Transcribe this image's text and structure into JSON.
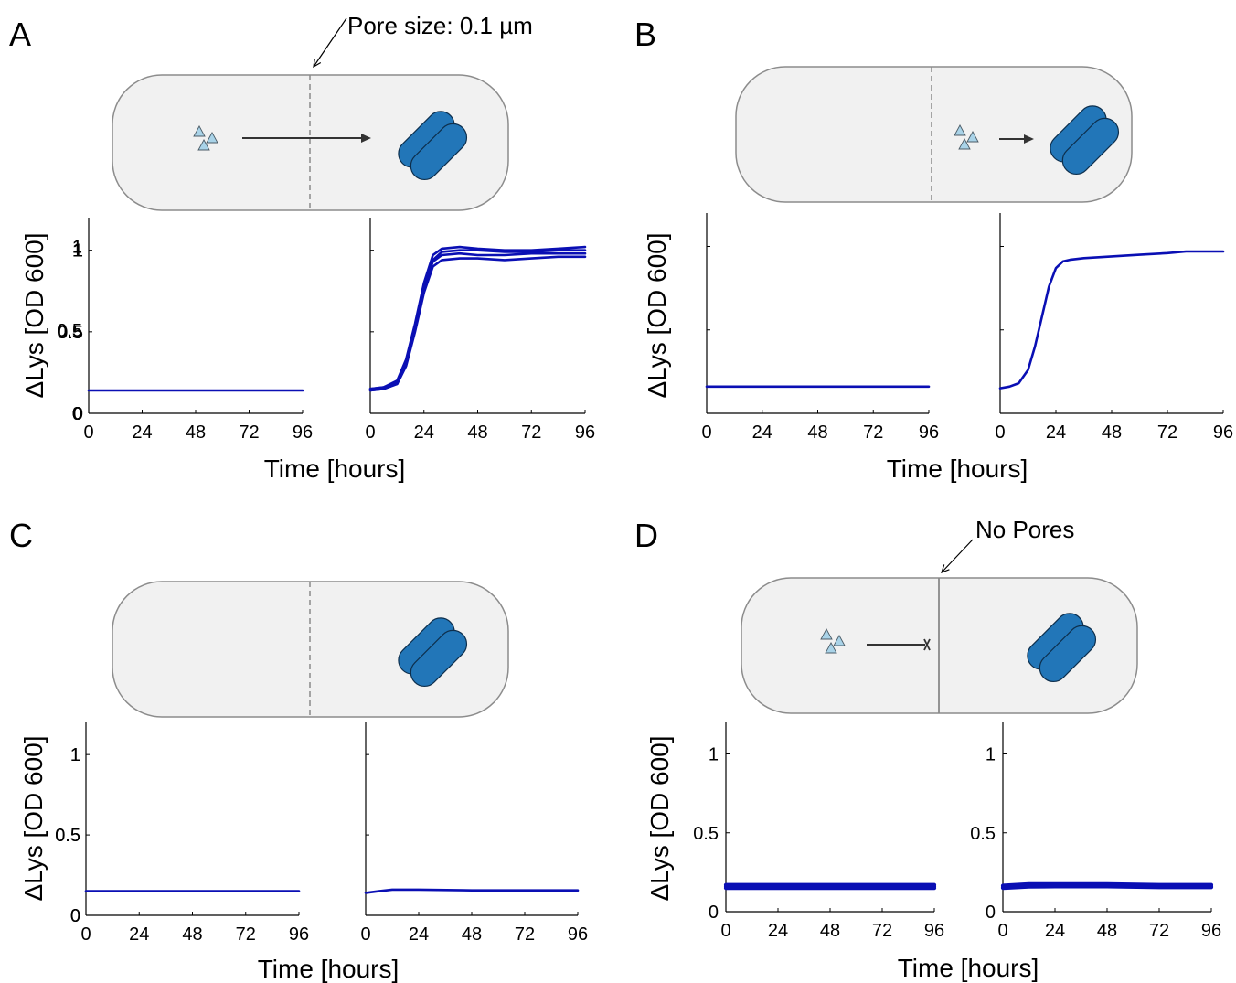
{
  "figure": {
    "panels": [
      {
        "letter": "A",
        "annotation": "Pore size: 0.1 µm",
        "nutrient_flow": "crosses_membrane",
        "membrane": "porous"
      },
      {
        "letter": "B",
        "annotation": "",
        "nutrient_flow": "same_side",
        "membrane": "porous"
      },
      {
        "letter": "C",
        "annotation": "",
        "nutrient_flow": "none",
        "membrane": "porous"
      },
      {
        "letter": "D",
        "annotation": "No Pores",
        "nutrient_flow": "blocked",
        "membrane": "solid"
      }
    ],
    "colors": {
      "curve": "#0a0fb4",
      "chamber_fill": "#f1f1f1",
      "chamber_stroke": "#8c8c8c",
      "bacteria": "#2276b8",
      "nutrient": "#a9d3e8",
      "arrow": "#333333"
    },
    "icons": [
      "nutrient-triangles",
      "rod-bacteria",
      "arrow",
      "membrane-dashed",
      "membrane-solid"
    ]
  },
  "chart_data": [
    {
      "panel": "A",
      "side": "left",
      "type": "line",
      "xlabel": "Time [hours]",
      "ylabel": "ΔLys [OD 600]",
      "xlim": [
        0,
        96
      ],
      "ylim": [
        0,
        1.2
      ],
      "xticks": [
        "0",
        "24",
        "48",
        "72",
        "96"
      ],
      "yticks": [
        "0",
        "0.5",
        "1"
      ],
      "series": [
        {
          "x": [
            0,
            24,
            48,
            72,
            96
          ],
          "y": [
            0.14,
            0.14,
            0.14,
            0.14,
            0.14
          ]
        }
      ]
    },
    {
      "panel": "A",
      "side": "right",
      "type": "line",
      "xlabel": "Time [hours]",
      "ylabel": "",
      "xlim": [
        0,
        96
      ],
      "ylim": [
        0,
        1.2
      ],
      "xticks": [
        "0",
        "24",
        "48",
        "72",
        "96"
      ],
      "yticks": [
        "0",
        "0.5",
        "1"
      ],
      "series": [
        {
          "x": [
            0,
            6,
            12,
            16,
            20,
            24,
            28,
            32,
            40,
            48,
            60,
            72,
            84,
            96
          ],
          "y": [
            0.15,
            0.16,
            0.2,
            0.33,
            0.55,
            0.8,
            0.97,
            1.01,
            1.02,
            1.01,
            1.0,
            1.0,
            1.01,
            1.02
          ]
        },
        {
          "x": [
            0,
            6,
            12,
            16,
            20,
            24,
            28,
            32,
            40,
            48,
            60,
            72,
            84,
            96
          ],
          "y": [
            0.14,
            0.15,
            0.18,
            0.3,
            0.52,
            0.77,
            0.94,
            0.99,
            1.0,
            1.0,
            0.99,
            0.99,
            1.0,
            1.0
          ]
        },
        {
          "x": [
            0,
            6,
            12,
            16,
            20,
            24,
            28,
            32,
            40,
            48,
            60,
            72,
            84,
            96
          ],
          "y": [
            0.15,
            0.16,
            0.19,
            0.32,
            0.54,
            0.78,
            0.93,
            0.97,
            0.98,
            0.97,
            0.97,
            0.98,
            0.98,
            0.98
          ]
        },
        {
          "x": [
            0,
            6,
            12,
            16,
            20,
            24,
            28,
            32,
            40,
            48,
            60,
            72,
            84,
            96
          ],
          "y": [
            0.14,
            0.15,
            0.18,
            0.29,
            0.5,
            0.74,
            0.9,
            0.94,
            0.95,
            0.95,
            0.94,
            0.95,
            0.96,
            0.96
          ]
        }
      ]
    },
    {
      "panel": "B",
      "side": "left",
      "type": "line",
      "xlabel": "Time [hours]",
      "ylabel": "ΔLys [OD 600]",
      "xlim": [
        0,
        96
      ],
      "ylim": [
        0,
        1.2
      ],
      "xticks": [
        "0",
        "24",
        "48",
        "72",
        "96"
      ],
      "yticks": [
        "0",
        "0.5",
        "1"
      ],
      "series": [
        {
          "x": [
            0,
            24,
            48,
            72,
            96
          ],
          "y": [
            0.16,
            0.16,
            0.16,
            0.16,
            0.16
          ]
        }
      ]
    },
    {
      "panel": "B",
      "side": "right",
      "type": "line",
      "xlabel": "Time [hours]",
      "ylabel": "",
      "xlim": [
        0,
        96
      ],
      "ylim": [
        0,
        1.2
      ],
      "xticks": [
        "0",
        "24",
        "48",
        "72",
        "96"
      ],
      "yticks": [
        "0",
        "0.5",
        "1"
      ],
      "series": [
        {
          "x": [
            0,
            4,
            8,
            12,
            15,
            18,
            21,
            24,
            27,
            30,
            36,
            48,
            60,
            72,
            80,
            88,
            96
          ],
          "y": [
            0.15,
            0.16,
            0.18,
            0.26,
            0.4,
            0.58,
            0.76,
            0.87,
            0.91,
            0.92,
            0.93,
            0.94,
            0.95,
            0.96,
            0.97,
            0.97,
            0.97
          ]
        }
      ]
    },
    {
      "panel": "C",
      "side": "left",
      "type": "line",
      "xlabel": "Time [hours]",
      "ylabel": "ΔLys [OD 600]",
      "xlim": [
        0,
        96
      ],
      "ylim": [
        0,
        1.2
      ],
      "xticks": [
        "0",
        "24",
        "48",
        "72",
        "96"
      ],
      "yticks": [
        "0",
        "0.5",
        "1"
      ],
      "series": [
        {
          "x": [
            0,
            24,
            48,
            72,
            96
          ],
          "y": [
            0.15,
            0.15,
            0.15,
            0.15,
            0.15
          ]
        }
      ]
    },
    {
      "panel": "C",
      "side": "right",
      "type": "line",
      "xlabel": "Time [hours]",
      "ylabel": "",
      "xlim": [
        0,
        96
      ],
      "ylim": [
        0,
        1.2
      ],
      "xticks": [
        "0",
        "24",
        "48",
        "72",
        "96"
      ],
      "yticks": [
        "0",
        "0.5",
        "1"
      ],
      "series": [
        {
          "x": [
            0,
            6,
            12,
            18,
            24,
            48,
            72,
            96
          ],
          "y": [
            0.14,
            0.15,
            0.16,
            0.16,
            0.16,
            0.155,
            0.155,
            0.155
          ]
        }
      ]
    },
    {
      "panel": "D",
      "side": "left",
      "type": "line",
      "xlabel": "Time [hours]",
      "ylabel": "ΔLys [OD 600]",
      "xlim": [
        0,
        96
      ],
      "ylim": [
        0,
        1.2
      ],
      "xticks": [
        "0",
        "24",
        "48",
        "72",
        "96"
      ],
      "yticks": [
        "0",
        "0.5",
        "1"
      ],
      "series": [
        {
          "x": [
            0,
            24,
            48,
            72,
            96
          ],
          "y": [
            0.17,
            0.17,
            0.17,
            0.17,
            0.17
          ]
        },
        {
          "x": [
            0,
            24,
            48,
            72,
            96
          ],
          "y": [
            0.16,
            0.16,
            0.16,
            0.16,
            0.16
          ]
        },
        {
          "x": [
            0,
            24,
            48,
            72,
            96
          ],
          "y": [
            0.15,
            0.15,
            0.15,
            0.15,
            0.15
          ]
        }
      ]
    },
    {
      "panel": "D",
      "side": "right",
      "type": "line",
      "xlabel": "Time [hours]",
      "ylabel": "",
      "xlim": [
        0,
        96
      ],
      "ylim": [
        0,
        1.2
      ],
      "xticks": [
        "0",
        "24",
        "48",
        "72",
        "96"
      ],
      "yticks": [
        "0",
        "0.5",
        "1"
      ],
      "series": [
        {
          "x": [
            0,
            12,
            24,
            48,
            72,
            96
          ],
          "y": [
            0.165,
            0.175,
            0.175,
            0.175,
            0.17,
            0.17
          ]
        },
        {
          "x": [
            0,
            12,
            24,
            48,
            72,
            96
          ],
          "y": [
            0.155,
            0.165,
            0.165,
            0.165,
            0.16,
            0.16
          ]
        },
        {
          "x": [
            0,
            12,
            24,
            48,
            72,
            96
          ],
          "y": [
            0.15,
            0.158,
            0.16,
            0.16,
            0.155,
            0.155
          ]
        }
      ]
    }
  ]
}
